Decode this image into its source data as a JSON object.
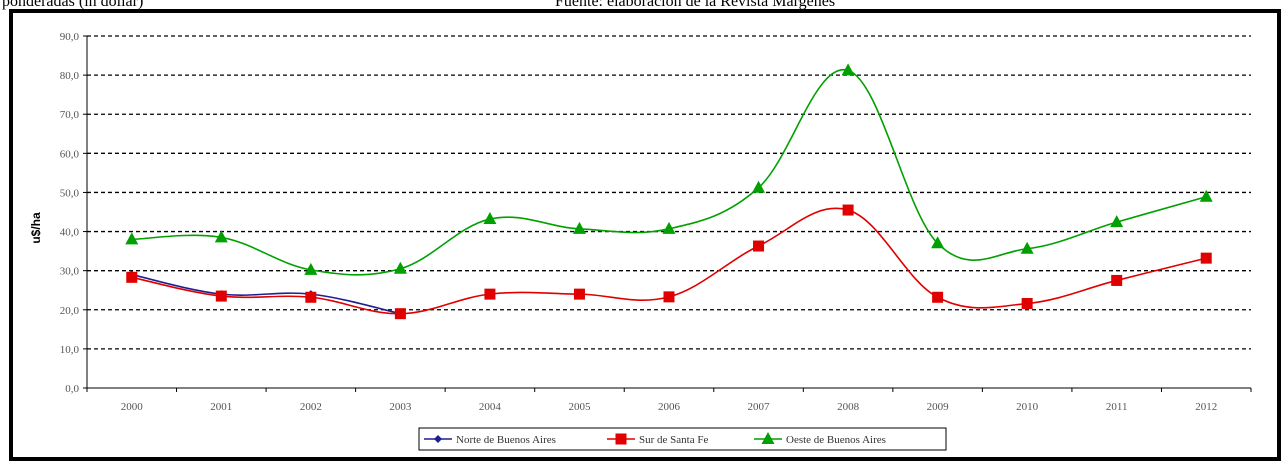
{
  "top_text": {
    "left": "ponderadas (in dollar)",
    "right": "Fuente: elaboración de la Revista Márgenes"
  },
  "colors": {
    "series1": "#1f1f8f",
    "series2": "#e00000",
    "series3": "#00a000"
  },
  "chart_data": {
    "type": "line",
    "ylabel": "u$/ha",
    "ylim": [
      0,
      90
    ],
    "yticks": [
      "0,0",
      "10,0",
      "20,0",
      "30,0",
      "40,0",
      "50,0",
      "60,0",
      "70,0",
      "80,0",
      "90,0"
    ],
    "grid": true,
    "legend": "bottom",
    "categories": [
      "2000",
      "2001",
      "2002",
      "2003",
      "2004",
      "2005",
      "2006",
      "2007",
      "2008",
      "2009",
      "2010",
      "2011",
      "2012"
    ],
    "series": [
      {
        "name": "Norte de Buenos Aires",
        "marker": "diamond",
        "values": [
          29,
          24,
          24,
          19,
          null,
          null,
          null,
          null,
          null,
          null,
          null,
          null,
          null
        ]
      },
      {
        "name": "Sur de Santa Fe",
        "marker": "square",
        "values": [
          28.3,
          23.5,
          23.2,
          19,
          24,
          24,
          23.3,
          36.3,
          45.5,
          23.2,
          21.6,
          27.5,
          33.2
        ]
      },
      {
        "name": "Oeste de Buenos Aires",
        "marker": "triangle",
        "values": [
          38,
          38.5,
          30.2,
          30.5,
          43.2,
          40.7,
          40.7,
          51.2,
          81.2,
          37,
          35.6,
          42.4,
          48.9
        ]
      }
    ]
  }
}
